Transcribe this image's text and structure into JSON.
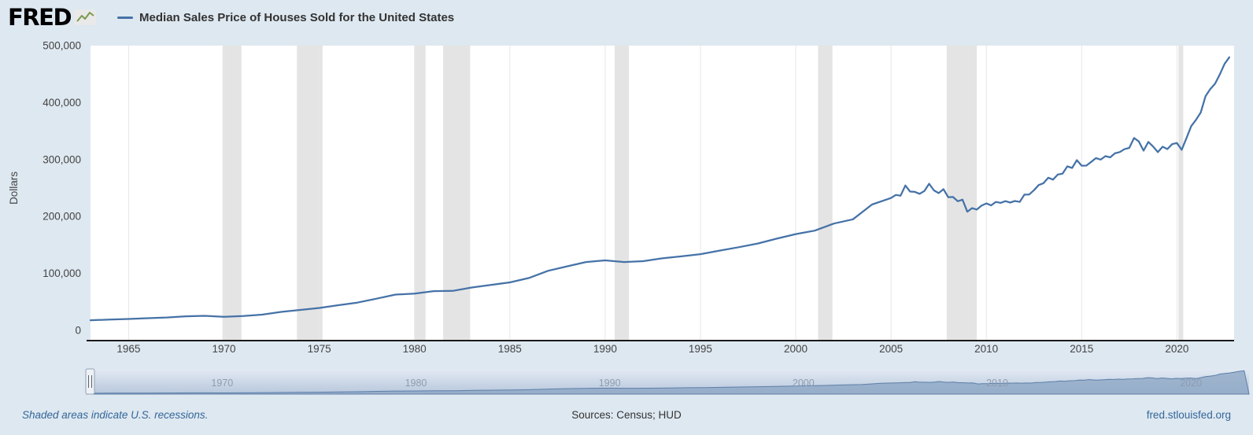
{
  "header": {
    "brand": "FRED",
    "legend_label": "Median Sales Price of Houses Sold for the United States"
  },
  "footer": {
    "recession_note": "Shaded areas indicate U.S. recessions.",
    "sources": "Sources: Census; HUD",
    "site": "fred.stlouisfed.org"
  },
  "colors": {
    "page_bg": "#dee8f0",
    "plot_bg": "#ffffff",
    "line": "#4572a7",
    "recession": "#e4e4e4",
    "gridline": "#e7e7e7",
    "axis_text": "#444444",
    "axis_line": "#1a1a1a",
    "link": "#336699",
    "nav_area": "#8fa8c6",
    "nav_line": "#5d7fa8",
    "nav_label": "#8d9cb0",
    "nav_grad_top": "#e3eaf3",
    "nav_grad_bottom": "#b7c7dc"
  },
  "chart_data": {
    "type": "line",
    "title": "Median Sales Price of Houses Sold for the United States",
    "xlabel": "",
    "ylabel": "Dollars",
    "xlim": [
      1963,
      2023
    ],
    "ylim": [
      0,
      500000
    ],
    "y_ticks": [
      0,
      100000,
      200000,
      300000,
      400000,
      500000
    ],
    "x_ticks": [
      1965,
      1970,
      1975,
      1980,
      1985,
      1990,
      1995,
      2000,
      2005,
      2010,
      2015,
      2020
    ],
    "grid": "vertical",
    "legend_position": "top-left",
    "recessions": [
      [
        1969.92,
        1970.92
      ],
      [
        1973.83,
        1975.17
      ],
      [
        1980.0,
        1980.58
      ],
      [
        1981.5,
        1982.92
      ],
      [
        1990.5,
        1991.25
      ],
      [
        2001.17,
        2001.92
      ],
      [
        2007.92,
        2009.5
      ],
      [
        2020.08,
        2020.33
      ]
    ],
    "series": [
      {
        "name": "Median Sales Price of Houses Sold for the United States",
        "units": "Dollars",
        "points": [
          [
            1963,
            17800
          ],
          [
            1964,
            18900
          ],
          [
            1965,
            20000
          ],
          [
            1966,
            21400
          ],
          [
            1967,
            22700
          ],
          [
            1968,
            24700
          ],
          [
            1969,
            25600
          ],
          [
            1970,
            23900
          ],
          [
            1971,
            25200
          ],
          [
            1972,
            27600
          ],
          [
            1973,
            32500
          ],
          [
            1974,
            35900
          ],
          [
            1975,
            39300
          ],
          [
            1976,
            44200
          ],
          [
            1977,
            48800
          ],
          [
            1978,
            55700
          ],
          [
            1979,
            62900
          ],
          [
            1980,
            64600
          ],
          [
            1981,
            68900
          ],
          [
            1982,
            69300
          ],
          [
            1983,
            75300
          ],
          [
            1984,
            79900
          ],
          [
            1985,
            84300
          ],
          [
            1986,
            92000
          ],
          [
            1987,
            104500
          ],
          [
            1988,
            112500
          ],
          [
            1989,
            120000
          ],
          [
            1990,
            122900
          ],
          [
            1991,
            120000
          ],
          [
            1992,
            121500
          ],
          [
            1993,
            126500
          ],
          [
            1994,
            130000
          ],
          [
            1995,
            133900
          ],
          [
            1996,
            140000
          ],
          [
            1997,
            146000
          ],
          [
            1998,
            152500
          ],
          [
            1999,
            161000
          ],
          [
            2000,
            169000
          ],
          [
            2001,
            175200
          ],
          [
            2002,
            187600
          ],
          [
            2003,
            195000
          ],
          [
            2004,
            221000
          ],
          [
            2005.0,
            232500
          ],
          [
            2005.25,
            237900
          ],
          [
            2005.5,
            236500
          ],
          [
            2005.75,
            254400
          ],
          [
            2006.0,
            243800
          ],
          [
            2006.25,
            243200
          ],
          [
            2006.5,
            239800
          ],
          [
            2006.75,
            244700
          ],
          [
            2007.0,
            257400
          ],
          [
            2007.25,
            245800
          ],
          [
            2007.5,
            241000
          ],
          [
            2007.75,
            247900
          ],
          [
            2008.0,
            233900
          ],
          [
            2008.25,
            234300
          ],
          [
            2008.5,
            226800
          ],
          [
            2008.75,
            229600
          ],
          [
            2009.0,
            208400
          ],
          [
            2009.25,
            214700
          ],
          [
            2009.5,
            212200
          ],
          [
            2009.75,
            219000
          ],
          [
            2010.0,
            222900
          ],
          [
            2010.25,
            219500
          ],
          [
            2010.5,
            225500
          ],
          [
            2010.75,
            223900
          ],
          [
            2011.0,
            226900
          ],
          [
            2011.25,
            224500
          ],
          [
            2011.5,
            227200
          ],
          [
            2011.75,
            225500
          ],
          [
            2012.0,
            238400
          ],
          [
            2012.25,
            238700
          ],
          [
            2012.5,
            246200
          ],
          [
            2012.75,
            255300
          ],
          [
            2013.0,
            258400
          ],
          [
            2013.25,
            268100
          ],
          [
            2013.5,
            264800
          ],
          [
            2013.75,
            273600
          ],
          [
            2014.0,
            275200
          ],
          [
            2014.25,
            288000
          ],
          [
            2014.5,
            285200
          ],
          [
            2014.75,
            298900
          ],
          [
            2015.0,
            289200
          ],
          [
            2015.25,
            289400
          ],
          [
            2015.5,
            295800
          ],
          [
            2015.75,
            302500
          ],
          [
            2016.0,
            299800
          ],
          [
            2016.25,
            306000
          ],
          [
            2016.5,
            303800
          ],
          [
            2016.75,
            310900
          ],
          [
            2017.0,
            313100
          ],
          [
            2017.25,
            318200
          ],
          [
            2017.5,
            320500
          ],
          [
            2017.75,
            337900
          ],
          [
            2018.0,
            331800
          ],
          [
            2018.25,
            315600
          ],
          [
            2018.5,
            330900
          ],
          [
            2018.75,
            322800
          ],
          [
            2019.0,
            313000
          ],
          [
            2019.25,
            322500
          ],
          [
            2019.5,
            318400
          ],
          [
            2019.75,
            327100
          ],
          [
            2020.0,
            329000
          ],
          [
            2020.25,
            317100
          ],
          [
            2020.5,
            337500
          ],
          [
            2020.75,
            358700
          ],
          [
            2021.0,
            369800
          ],
          [
            2021.25,
            382600
          ],
          [
            2021.5,
            411200
          ],
          [
            2021.75,
            423600
          ],
          [
            2022.0,
            433100
          ],
          [
            2022.25,
            449300
          ],
          [
            2022.5,
            468000
          ],
          [
            2022.75,
            479500
          ]
        ]
      }
    ],
    "navigator": {
      "labels": [
        1970,
        1980,
        1990,
        2000,
        2010,
        2020
      ]
    }
  }
}
